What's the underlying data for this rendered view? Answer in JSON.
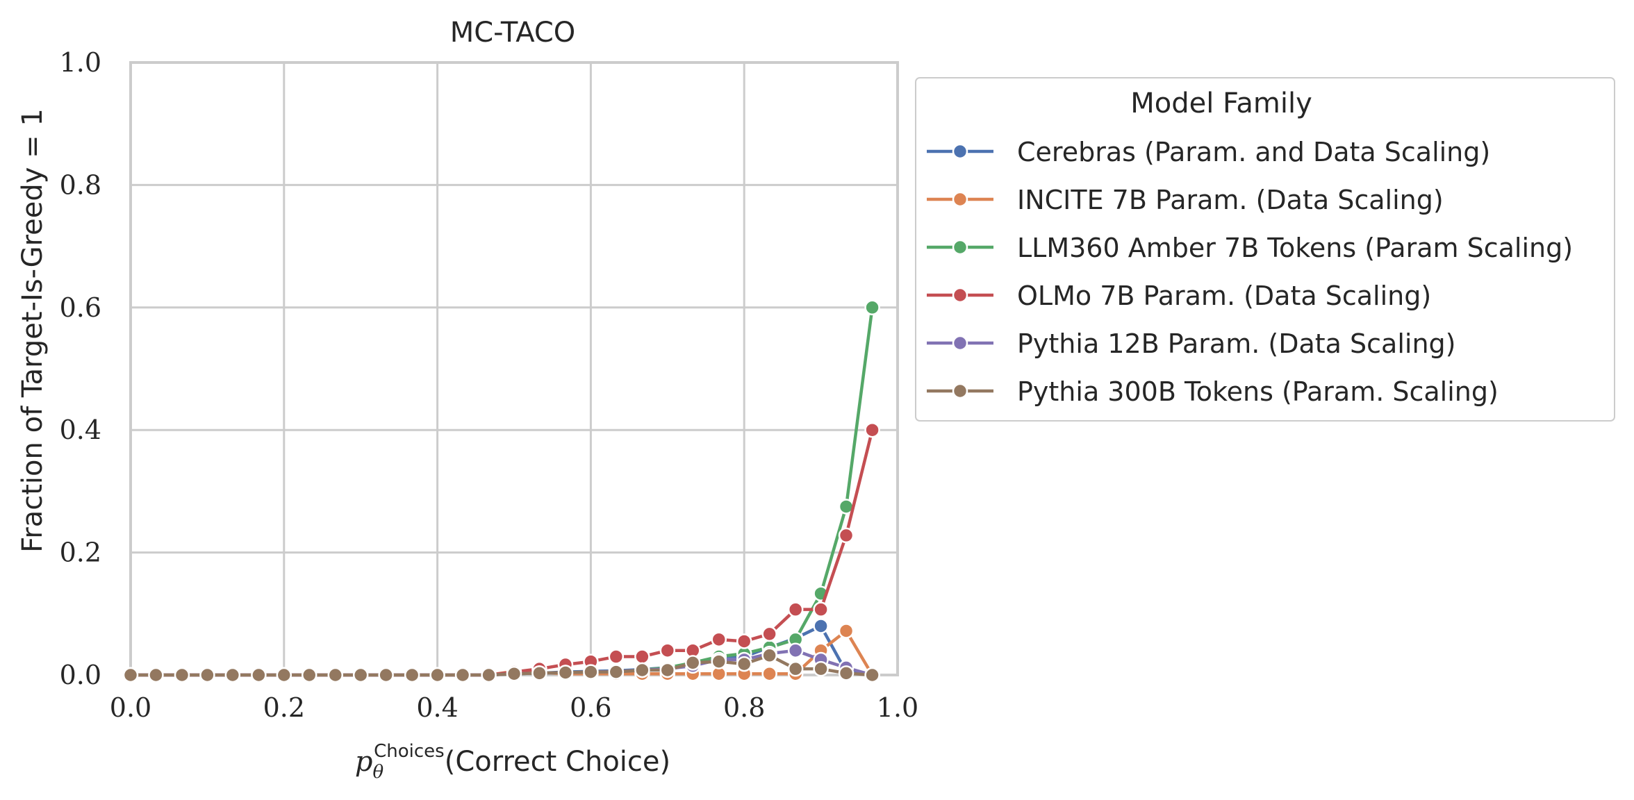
{
  "chart_data": {
    "type": "line",
    "title": "MC-TACO",
    "xlabel_math": "p",
    "xlabel_sub": "θ",
    "xlabel_sup": "Choices",
    "xlabel_rest": "(Correct Choice)",
    "ylabel": "Fraction of Target-Is-Greedy = 1",
    "xlim": [
      0,
      1
    ],
    "ylim": [
      0,
      1
    ],
    "xticks": [
      "0.0",
      "0.2",
      "0.4",
      "0.6",
      "0.8",
      "1.0"
    ],
    "yticks": [
      "0.0",
      "0.2",
      "0.4",
      "0.6",
      "0.8",
      "1.0"
    ],
    "grid": true,
    "legend_title": "Model Family",
    "legend_placement": "outside upper right",
    "x": [
      0.0,
      0.033,
      0.067,
      0.1,
      0.133,
      0.167,
      0.2,
      0.233,
      0.267,
      0.3,
      0.333,
      0.367,
      0.4,
      0.433,
      0.467,
      0.5,
      0.533,
      0.567,
      0.6,
      0.633,
      0.667,
      0.7,
      0.733,
      0.767,
      0.8,
      0.833,
      0.867,
      0.9,
      0.933,
      0.967
    ],
    "series": [
      {
        "name": "Cerebras (Param. and Data Scaling)",
        "color": "#4c72b0",
        "values": [
          0,
          0,
          0,
          0,
          0,
          0,
          0,
          0,
          0,
          0,
          0,
          0,
          0,
          0,
          0,
          0.003,
          0.003,
          0.005,
          0.006,
          0.007,
          0.009,
          0.012,
          0.018,
          0.03,
          0.03,
          0.045,
          0.06,
          0.08,
          0.005,
          0
        ]
      },
      {
        "name": "INCITE 7B Param. (Data Scaling)",
        "color": "#dd8452",
        "values": [
          0,
          0,
          0,
          0,
          0,
          0,
          0,
          0,
          0,
          0,
          0,
          0,
          0,
          0,
          0,
          0.006,
          0.004,
          0.002,
          0.002,
          0.002,
          0.002,
          0.002,
          0.002,
          0.002,
          0.002,
          0.002,
          0.002,
          0.04,
          0.072,
          0
        ]
      },
      {
        "name": "LLM360 Amber 7B Tokens (Param Scaling)",
        "color": "#55a868",
        "values": [
          0,
          0,
          0,
          0,
          0,
          0,
          0,
          0,
          0,
          0,
          0,
          0,
          0,
          0,
          0,
          0.002,
          0.003,
          0.004,
          0.005,
          0.006,
          0.008,
          0.012,
          0.02,
          0.03,
          0.035,
          0.045,
          0.058,
          0.133,
          0.275,
          0.6
        ]
      },
      {
        "name": "OLMo 7B Param. (Data Scaling)",
        "color": "#c44e52",
        "values": [
          0,
          0,
          0,
          0,
          0,
          0,
          0,
          0,
          0,
          0,
          0,
          0,
          0,
          0,
          0,
          0.005,
          0.01,
          0.017,
          0.022,
          0.03,
          0.03,
          0.04,
          0.04,
          0.058,
          0.055,
          0.067,
          0.107,
          0.107,
          0.228,
          0.4
        ]
      },
      {
        "name": "Pythia 12B Param. (Data Scaling)",
        "color": "#8172b3",
        "values": [
          0,
          0,
          0,
          0,
          0,
          0,
          0,
          0,
          0,
          0,
          0,
          0,
          0,
          0,
          0,
          0.002,
          0.003,
          0.004,
          0.005,
          0.006,
          0.008,
          0.01,
          0.015,
          0.025,
          0.025,
          0.035,
          0.04,
          0.025,
          0.012,
          0
        ]
      },
      {
        "name": "Pythia 300B Tokens (Param. Scaling)",
        "color": "#937860",
        "values": [
          0,
          0,
          0,
          0,
          0,
          0,
          0,
          0,
          0,
          0,
          0,
          0,
          0,
          0,
          0,
          0.002,
          0.003,
          0.004,
          0.005,
          0.005,
          0.008,
          0.008,
          0.02,
          0.022,
          0.018,
          0.032,
          0.01,
          0.01,
          0.003,
          0
        ]
      }
    ]
  }
}
